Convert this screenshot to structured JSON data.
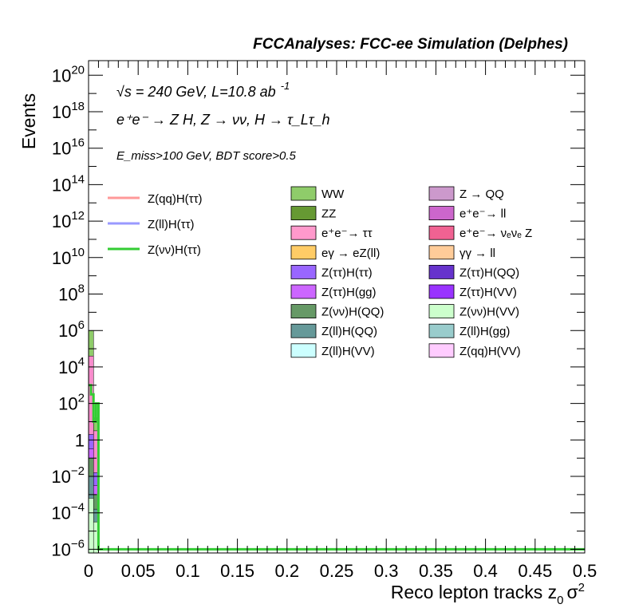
{
  "chart_data": {
    "type": "bar",
    "title": "FCCAnalyses: FCC-ee Simulation (Delphes)",
    "xlabel": "Reco lepton tracks z",
    "xlabel_sub": "0",
    "xlabel_tail": "σ",
    "xlabel_sup": "2",
    "ylabel": "Events",
    "xlim": [
      0,
      0.5
    ],
    "ylim_log10": [
      -6.2,
      20.8
    ],
    "yscale": "log",
    "grid": false,
    "legend_placement": "top",
    "x_ticks": [
      "0",
      "0.05",
      "0.1",
      "0.15",
      "0.2",
      "0.25",
      "0.3",
      "0.35",
      "0.4",
      "0.45",
      "0.5"
    ],
    "y_ticks": [
      {
        "base": "10",
        "exp": "−6",
        "log": -6
      },
      {
        "base": "10",
        "exp": "−4",
        "log": -4
      },
      {
        "base": "10",
        "exp": "−2",
        "log": -2
      },
      {
        "base": "1",
        "exp": "",
        "log": 0
      },
      {
        "base": "10",
        "exp": "2",
        "log": 2
      },
      {
        "base": "10",
        "exp": "4",
        "log": 4
      },
      {
        "base": "10",
        "exp": "6",
        "log": 6
      },
      {
        "base": "10",
        "exp": "8",
        "log": 8
      },
      {
        "base": "10",
        "exp": "10",
        "log": 10
      },
      {
        "base": "10",
        "exp": "12",
        "log": 12
      },
      {
        "base": "10",
        "exp": "14",
        "log": 14
      },
      {
        "base": "10",
        "exp": "16",
        "log": 16
      },
      {
        "base": "10",
        "exp": "18",
        "log": 18
      },
      {
        "base": "10",
        "exp": "20",
        "log": 20
      }
    ],
    "annotations": {
      "energy": "√s = 240 GeV, L=10.8 ab",
      "energy_sup": "-1",
      "process": "e⁺e⁻ → Z H, Z → νν, H → τ_Lτ_h",
      "cut": "E_miss>100 GeV, BDT score>0.5"
    },
    "bins": {
      "width": 0.005,
      "range": [
        0,
        0.015
      ]
    },
    "stack": [
      {
        "name": "WW",
        "color": "#8fcc6a",
        "log_values": [
          6.0,
          1.2,
          -6.2
        ]
      },
      {
        "name": "e⁺e⁻→ ττ",
        "color": "#f88ccc",
        "log_values": [
          4.6,
          0.5,
          -6.2
        ]
      },
      {
        "name": "Z(ττ)H(ττ)",
        "color": "#9a66ff",
        "log_values": [
          0.3,
          -1.8,
          -6.2
        ]
      },
      {
        "name": "Z(ττ)H(gg)",
        "color": "#cc66ff",
        "log_values": [
          -0.5,
          -2.5,
          -6.2
        ]
      },
      {
        "name": "Z(νν)H(QQ)",
        "color": "#669966",
        "log_values": [
          -1.0,
          -3.0,
          -6.2
        ]
      },
      {
        "name": "Z(ll)H(QQ)",
        "color": "#669999",
        "log_values": [
          -2.0,
          -3.8,
          -6.2
        ]
      },
      {
        "name": "Z(νν)H(VV)",
        "color": "#ccffcc",
        "log_values": [
          -3.2,
          -4.5,
          -6.2
        ]
      }
    ],
    "legend_lines": [
      {
        "name": "Z(qq)H(ττ)",
        "color": "#ff9999"
      },
      {
        "name": "Z(ll)H(ττ)",
        "color": "#9999ff"
      },
      {
        "name": "Z(νν)H(ττ)",
        "color": "#33cc33"
      }
    ],
    "signal_line": {
      "name": "Z(νν)H(ττ)",
      "color": "#33cc33",
      "x": [
        0,
        0.0025,
        0.005,
        0.0075,
        0.01,
        0.5
      ],
      "log_values": [
        3.0,
        2.5,
        1.0,
        2.0,
        -6.0,
        -6.0
      ]
    },
    "legend_boxes": [
      {
        "name": "WW",
        "color": "#8fcc6a"
      },
      {
        "name": "Z → QQ",
        "color": "#cc99cc"
      },
      {
        "name": "ZZ",
        "color": "#669933"
      },
      {
        "name": "e⁺e⁻→ ll",
        "color": "#cc66cc"
      },
      {
        "name": "e⁺e⁻→ ττ",
        "color": "#ff99cc"
      },
      {
        "name": "e⁺e⁻→ νₑνₑ Z",
        "color": "#f06292"
      },
      {
        "name": "eγ → eZ(ll)",
        "color": "#ffcc66"
      },
      {
        "name": "γγ → ll",
        "color": "#ffcc99"
      },
      {
        "name": "Z(ττ)H(ττ)",
        "color": "#9966ff"
      },
      {
        "name": "Z(ττ)H(QQ)",
        "color": "#6633cc"
      },
      {
        "name": "Z(ττ)H(gg)",
        "color": "#cc66ff"
      },
      {
        "name": "Z(ττ)H(VV)",
        "color": "#9933ff"
      },
      {
        "name": "Z(νν)H(QQ)",
        "color": "#669966"
      },
      {
        "name": "Z(νν)H(VV)",
        "color": "#ccffcc"
      },
      {
        "name": "Z(ll)H(QQ)",
        "color": "#669999"
      },
      {
        "name": "Z(ll)H(gg)",
        "color": "#99cccc"
      },
      {
        "name": "Z(ll)H(VV)",
        "color": "#ccffff"
      },
      {
        "name": "Z(qq)H(VV)",
        "color": "#ffccff"
      }
    ]
  }
}
